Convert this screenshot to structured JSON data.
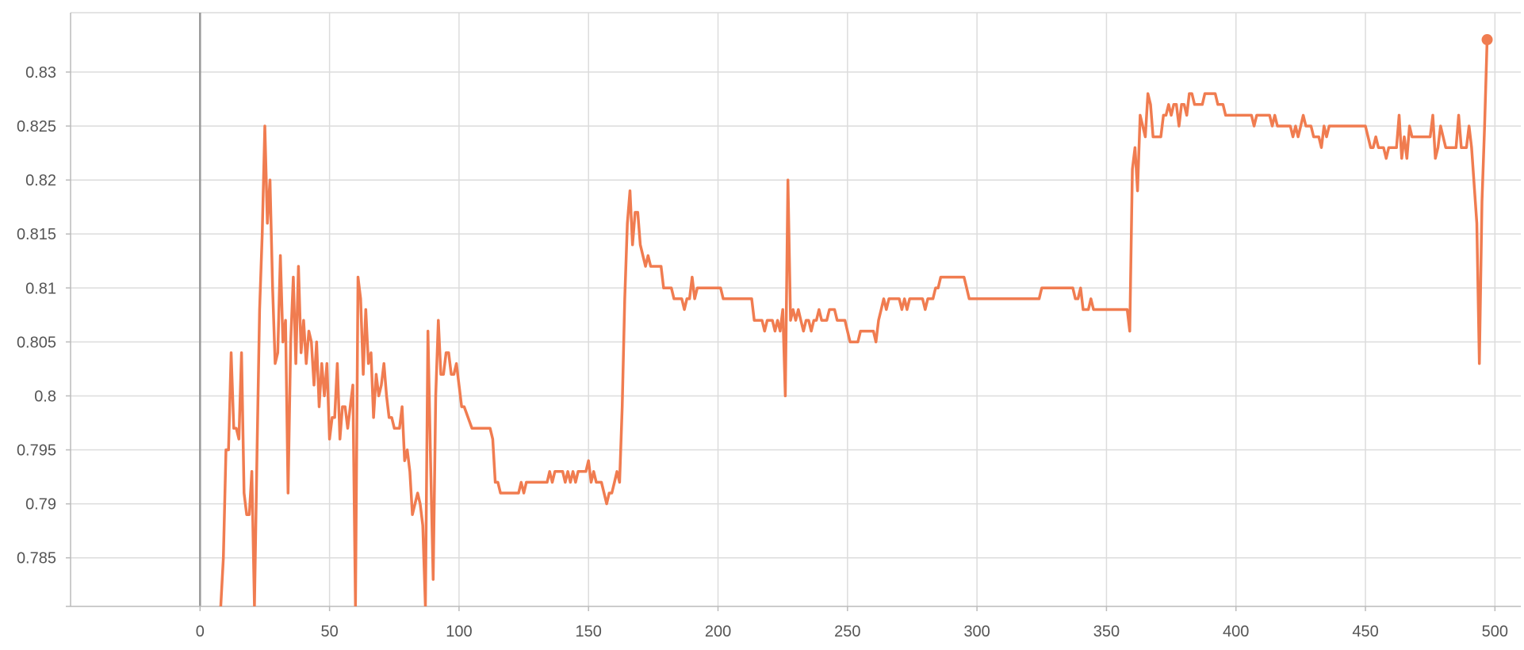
{
  "colors": {
    "series": "#f07c50",
    "background": "#ffffff"
  },
  "chart_data": {
    "type": "line",
    "title": "",
    "xlabel": "",
    "ylabel": "",
    "xlim": [
      -50,
      510
    ],
    "ylim": [
      0.7805,
      0.8355
    ],
    "grid": true,
    "x_ticks": [
      0,
      50,
      100,
      150,
      200,
      250,
      300,
      350,
      400,
      450,
      500
    ],
    "y_ticks": [
      0.785,
      0.79,
      0.795,
      0.8,
      0.805,
      0.81,
      0.815,
      0.82,
      0.825,
      0.83
    ],
    "series": [
      {
        "points": [
          [
            8,
            0.7805
          ],
          [
            9,
            0.785
          ],
          [
            10,
            0.795
          ],
          [
            11,
            0.795
          ],
          [
            12,
            0.804
          ],
          [
            13,
            0.797
          ],
          [
            14,
            0.797
          ],
          [
            15,
            0.796
          ],
          [
            16,
            0.804
          ],
          [
            17,
            0.791
          ],
          [
            18,
            0.789
          ],
          [
            19,
            0.789
          ],
          [
            20,
            0.793
          ],
          [
            21,
            0.7805
          ],
          [
            22,
            0.795
          ],
          [
            23,
            0.808
          ],
          [
            24,
            0.815
          ],
          [
            25,
            0.825
          ],
          [
            26,
            0.816
          ],
          [
            27,
            0.82
          ],
          [
            28,
            0.81
          ],
          [
            29,
            0.803
          ],
          [
            30,
            0.804
          ],
          [
            31,
            0.813
          ],
          [
            32,
            0.805
          ],
          [
            33,
            0.807
          ],
          [
            34,
            0.791
          ],
          [
            35,
            0.805
          ],
          [
            36,
            0.811
          ],
          [
            37,
            0.803
          ],
          [
            38,
            0.812
          ],
          [
            39,
            0.804
          ],
          [
            40,
            0.807
          ],
          [
            41,
            0.803
          ],
          [
            42,
            0.806
          ],
          [
            43,
            0.805
          ],
          [
            44,
            0.801
          ],
          [
            45,
            0.805
          ],
          [
            46,
            0.799
          ],
          [
            47,
            0.803
          ],
          [
            48,
            0.8
          ],
          [
            49,
            0.803
          ],
          [
            50,
            0.796
          ],
          [
            51,
            0.798
          ],
          [
            52,
            0.798
          ],
          [
            53,
            0.803
          ],
          [
            54,
            0.796
          ],
          [
            55,
            0.799
          ],
          [
            56,
            0.799
          ],
          [
            57,
            0.797
          ],
          [
            58,
            0.799
          ],
          [
            59,
            0.801
          ],
          [
            60,
            0.7805
          ],
          [
            61,
            0.811
          ],
          [
            62,
            0.809
          ],
          [
            63,
            0.802
          ],
          [
            64,
            0.808
          ],
          [
            65,
            0.803
          ],
          [
            66,
            0.804
          ],
          [
            67,
            0.798
          ],
          [
            68,
            0.802
          ],
          [
            69,
            0.8
          ],
          [
            70,
            0.801
          ],
          [
            71,
            0.803
          ],
          [
            72,
            0.8
          ],
          [
            73,
            0.798
          ],
          [
            74,
            0.798
          ],
          [
            75,
            0.797
          ],
          [
            76,
            0.797
          ],
          [
            77,
            0.797
          ],
          [
            78,
            0.799
          ],
          [
            79,
            0.794
          ],
          [
            80,
            0.795
          ],
          [
            81,
            0.793
          ],
          [
            82,
            0.789
          ],
          [
            83,
            0.79
          ],
          [
            84,
            0.791
          ],
          [
            85,
            0.79
          ],
          [
            86,
            0.788
          ],
          [
            87,
            0.7805
          ],
          [
            88,
            0.806
          ],
          [
            89,
            0.794
          ],
          [
            90,
            0.783
          ],
          [
            91,
            0.8
          ],
          [
            92,
            0.807
          ],
          [
            93,
            0.802
          ],
          [
            94,
            0.802
          ],
          [
            95,
            0.804
          ],
          [
            96,
            0.804
          ],
          [
            97,
            0.802
          ],
          [
            98,
            0.802
          ],
          [
            99,
            0.803
          ],
          [
            100,
            0.801
          ],
          [
            101,
            0.799
          ],
          [
            102,
            0.799
          ],
          [
            105,
            0.797
          ],
          [
            112,
            0.797
          ],
          [
            113,
            0.796
          ],
          [
            114,
            0.792
          ],
          [
            115,
            0.792
          ],
          [
            116,
            0.791
          ],
          [
            123,
            0.791
          ],
          [
            124,
            0.792
          ],
          [
            125,
            0.791
          ],
          [
            126,
            0.792
          ],
          [
            134,
            0.792
          ],
          [
            135,
            0.793
          ],
          [
            136,
            0.792
          ],
          [
            137,
            0.793
          ],
          [
            140,
            0.793
          ],
          [
            141,
            0.792
          ],
          [
            142,
            0.793
          ],
          [
            143,
            0.792
          ],
          [
            144,
            0.793
          ],
          [
            145,
            0.792
          ],
          [
            146,
            0.793
          ],
          [
            149,
            0.793
          ],
          [
            150,
            0.794
          ],
          [
            151,
            0.792
          ],
          [
            152,
            0.793
          ],
          [
            153,
            0.792
          ],
          [
            155,
            0.792
          ],
          [
            156,
            0.791
          ],
          [
            157,
            0.79
          ],
          [
            158,
            0.791
          ],
          [
            159,
            0.791
          ],
          [
            160,
            0.792
          ],
          [
            161,
            0.793
          ],
          [
            162,
            0.792
          ],
          [
            163,
            0.799
          ],
          [
            164,
            0.809
          ],
          [
            165,
            0.816
          ],
          [
            166,
            0.819
          ],
          [
            167,
            0.814
          ],
          [
            168,
            0.817
          ],
          [
            169,
            0.817
          ],
          [
            170,
            0.814
          ],
          [
            171,
            0.813
          ],
          [
            172,
            0.812
          ],
          [
            173,
            0.813
          ],
          [
            174,
            0.812
          ],
          [
            178,
            0.812
          ],
          [
            179,
            0.81
          ],
          [
            182,
            0.81
          ],
          [
            183,
            0.809
          ],
          [
            186,
            0.809
          ],
          [
            187,
            0.808
          ],
          [
            188,
            0.809
          ],
          [
            189,
            0.809
          ],
          [
            190,
            0.811
          ],
          [
            191,
            0.809
          ],
          [
            192,
            0.81
          ],
          [
            201,
            0.81
          ],
          [
            202,
            0.809
          ],
          [
            213,
            0.809
          ],
          [
            214,
            0.807
          ],
          [
            217,
            0.807
          ],
          [
            218,
            0.806
          ],
          [
            219,
            0.807
          ],
          [
            221,
            0.807
          ],
          [
            222,
            0.806
          ],
          [
            223,
            0.807
          ],
          [
            224,
            0.806
          ],
          [
            225,
            0.808
          ],
          [
            226,
            0.8
          ],
          [
            227,
            0.82
          ],
          [
            228,
            0.807
          ],
          [
            229,
            0.808
          ],
          [
            230,
            0.807
          ],
          [
            231,
            0.808
          ],
          [
            232,
            0.807
          ],
          [
            233,
            0.806
          ],
          [
            234,
            0.807
          ],
          [
            235,
            0.807
          ],
          [
            236,
            0.806
          ],
          [
            237,
            0.807
          ],
          [
            238,
            0.807
          ],
          [
            239,
            0.808
          ],
          [
            240,
            0.807
          ],
          [
            242,
            0.807
          ],
          [
            243,
            0.808
          ],
          [
            245,
            0.808
          ],
          [
            246,
            0.807
          ],
          [
            249,
            0.807
          ],
          [
            250,
            0.806
          ],
          [
            251,
            0.805
          ],
          [
            254,
            0.805
          ],
          [
            255,
            0.806
          ],
          [
            260,
            0.806
          ],
          [
            261,
            0.805
          ],
          [
            262,
            0.807
          ],
          [
            263,
            0.808
          ],
          [
            264,
            0.809
          ],
          [
            265,
            0.808
          ],
          [
            266,
            0.809
          ],
          [
            270,
            0.809
          ],
          [
            271,
            0.808
          ],
          [
            272,
            0.809
          ],
          [
            273,
            0.808
          ],
          [
            274,
            0.809
          ],
          [
            279,
            0.809
          ],
          [
            280,
            0.808
          ],
          [
            281,
            0.809
          ],
          [
            283,
            0.809
          ],
          [
            284,
            0.81
          ],
          [
            285,
            0.81
          ],
          [
            286,
            0.811
          ],
          [
            295,
            0.811
          ],
          [
            296,
            0.81
          ],
          [
            297,
            0.809
          ],
          [
            324,
            0.809
          ],
          [
            325,
            0.81
          ],
          [
            337,
            0.81
          ],
          [
            338,
            0.809
          ],
          [
            339,
            0.809
          ],
          [
            340,
            0.81
          ],
          [
            341,
            0.808
          ],
          [
            343,
            0.808
          ],
          [
            344,
            0.809
          ],
          [
            345,
            0.808
          ],
          [
            358,
            0.808
          ],
          [
            359,
            0.806
          ],
          [
            360,
            0.821
          ],
          [
            361,
            0.823
          ],
          [
            362,
            0.819
          ],
          [
            363,
            0.826
          ],
          [
            364,
            0.825
          ],
          [
            365,
            0.824
          ],
          [
            366,
            0.828
          ],
          [
            367,
            0.827
          ],
          [
            368,
            0.824
          ],
          [
            371,
            0.824
          ],
          [
            372,
            0.826
          ],
          [
            373,
            0.826
          ],
          [
            374,
            0.827
          ],
          [
            375,
            0.826
          ],
          [
            376,
            0.827
          ],
          [
            377,
            0.827
          ],
          [
            378,
            0.825
          ],
          [
            379,
            0.827
          ],
          [
            380,
            0.827
          ],
          [
            381,
            0.826
          ],
          [
            382,
            0.828
          ],
          [
            383,
            0.828
          ],
          [
            384,
            0.827
          ],
          [
            387,
            0.827
          ],
          [
            388,
            0.828
          ],
          [
            392,
            0.828
          ],
          [
            393,
            0.827
          ],
          [
            395,
            0.827
          ],
          [
            396,
            0.826
          ],
          [
            406,
            0.826
          ],
          [
            407,
            0.825
          ],
          [
            408,
            0.826
          ],
          [
            413,
            0.826
          ],
          [
            414,
            0.825
          ],
          [
            415,
            0.826
          ],
          [
            416,
            0.825
          ],
          [
            421,
            0.825
          ],
          [
            422,
            0.824
          ],
          [
            423,
            0.825
          ],
          [
            424,
            0.824
          ],
          [
            425,
            0.825
          ],
          [
            426,
            0.826
          ],
          [
            427,
            0.825
          ],
          [
            429,
            0.825
          ],
          [
            430,
            0.824
          ],
          [
            432,
            0.824
          ],
          [
            433,
            0.823
          ],
          [
            434,
            0.825
          ],
          [
            435,
            0.824
          ],
          [
            436,
            0.825
          ],
          [
            450,
            0.825
          ],
          [
            451,
            0.824
          ],
          [
            452,
            0.823
          ],
          [
            453,
            0.823
          ],
          [
            454,
            0.824
          ],
          [
            455,
            0.823
          ],
          [
            457,
            0.823
          ],
          [
            458,
            0.822
          ],
          [
            459,
            0.823
          ],
          [
            462,
            0.823
          ],
          [
            463,
            0.826
          ],
          [
            464,
            0.822
          ],
          [
            465,
            0.824
          ],
          [
            466,
            0.822
          ],
          [
            467,
            0.825
          ],
          [
            468,
            0.824
          ],
          [
            475,
            0.824
          ],
          [
            476,
            0.826
          ],
          [
            477,
            0.822
          ],
          [
            478,
            0.823
          ],
          [
            479,
            0.825
          ],
          [
            480,
            0.824
          ],
          [
            481,
            0.823
          ],
          [
            485,
            0.823
          ],
          [
            486,
            0.826
          ],
          [
            487,
            0.823
          ],
          [
            489,
            0.823
          ],
          [
            490,
            0.825
          ],
          [
            491,
            0.823
          ],
          [
            493,
            0.816
          ],
          [
            494,
            0.803
          ],
          [
            495,
            0.818
          ],
          [
            496,
            0.825
          ],
          [
            497,
            0.833
          ]
        ]
      }
    ]
  }
}
